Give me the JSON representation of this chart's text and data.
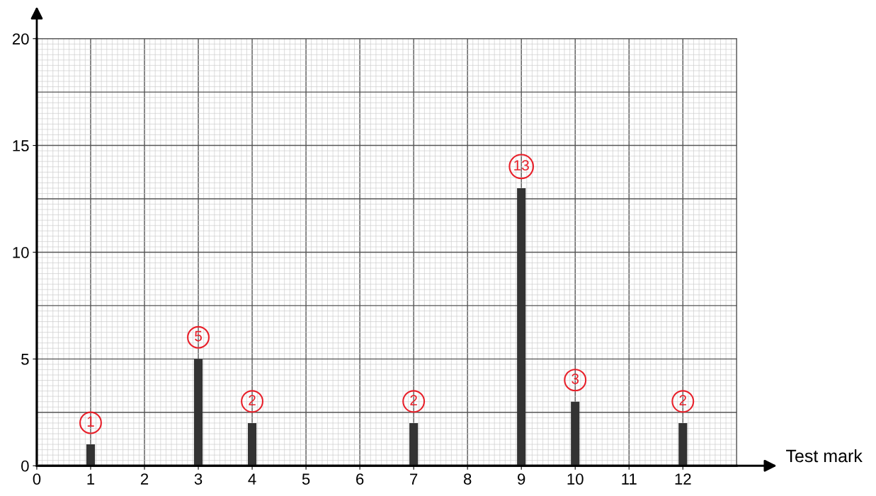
{
  "chart_data": {
    "type": "bar",
    "xlabel": "Test mark",
    "x": [
      1,
      3,
      4,
      7,
      9,
      10,
      12
    ],
    "values": [
      1,
      5,
      2,
      2,
      13,
      3,
      2
    ],
    "color": "#333333",
    "data_labels": true,
    "xlim": [
      0,
      13
    ],
    "xticks": [
      0,
      1,
      2,
      3,
      4,
      5,
      6,
      7,
      8,
      9,
      10,
      11,
      12
    ],
    "ylim": [
      0,
      20
    ],
    "yticks": [
      0,
      5,
      10,
      15,
      20
    ],
    "grid": true
  }
}
